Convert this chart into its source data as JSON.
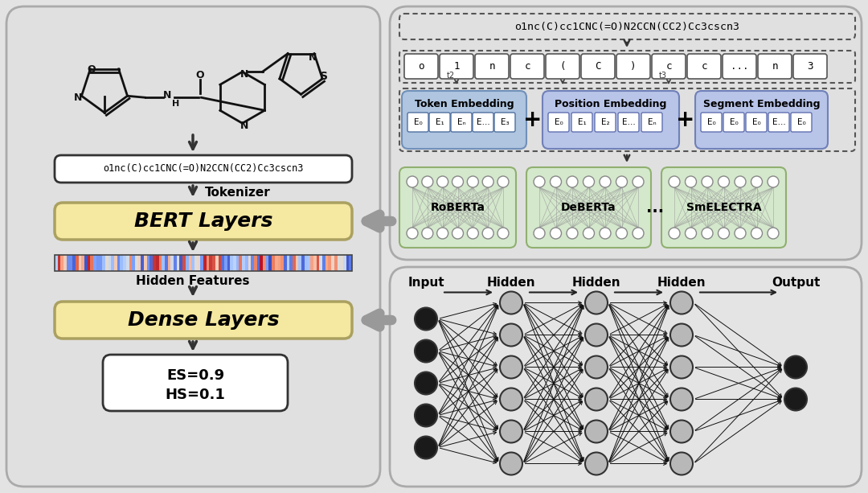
{
  "bg_color": "#e3e3e3",
  "left_panel_bg": "#e0e0e0",
  "right_top_panel_bg": "#e0e0e0",
  "bert_box_color": "#f5e8a0",
  "dense_box_color": "#f5e8a0",
  "token_emb_color": "#afc5e0",
  "pos_emb_color": "#b8c4e8",
  "seg_emb_color": "#b8c4e8",
  "bert_model_bg": "#d4e8cc",
  "smiles_text": "o1nc(C)cc1CNC(=O)N2CCN(CC2)Cc3cscn3",
  "smiles_top_text": "o1nc(C)cc1CNC(=O)N2CCN(CC2)Cc3cscn3",
  "tokens": [
    "o",
    "1",
    "n",
    "c",
    "(",
    "C",
    ")",
    "c",
    "c",
    "...",
    "n",
    "3"
  ],
  "token_emb_labels": [
    "E₀",
    "E₁",
    "Eₙ",
    "E…",
    "E₃"
  ],
  "pos_emb_labels": [
    "E₀",
    "E₁",
    "E₂",
    "E…",
    "Eₙ"
  ],
  "seg_emb_labels": [
    "E₀",
    "E₀",
    "E₀",
    "E…",
    "E₀"
  ],
  "bert_models": [
    "RoBERTa",
    "DeBERTa",
    "SmELECTRA"
  ],
  "nn_layers": [
    "Input",
    "Hidden",
    "Hidden",
    "Hidden",
    "Output"
  ],
  "node_color_input": "#1a1a1a",
  "node_color_hidden": "#b8b8b8",
  "node_color_output": "#1a1a1a"
}
